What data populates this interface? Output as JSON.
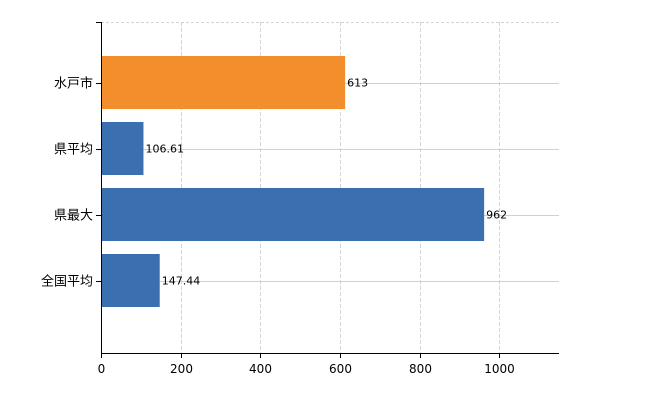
{
  "chart_data": {
    "type": "bar",
    "orientation": "horizontal",
    "title": "",
    "xlabel": "",
    "ylabel": "",
    "categories": [
      "水戸市",
      "県平均",
      "県最大",
      "全国平均"
    ],
    "values": [
      613,
      106.61,
      962,
      147.44
    ],
    "value_labels": [
      "613",
      "106.61",
      "962",
      "147.44"
    ],
    "bar_colors": [
      "#f28e2b",
      "#3a6fb0",
      "#3a6fb0",
      "#3a6fb0"
    ],
    "xlim": [
      0,
      1150
    ],
    "xticks": [
      0,
      200,
      400,
      600,
      800,
      1000
    ],
    "xtick_labels": [
      "0",
      "200",
      "400",
      "600",
      "800",
      "1000"
    ],
    "grid": true,
    "legend": "none"
  }
}
